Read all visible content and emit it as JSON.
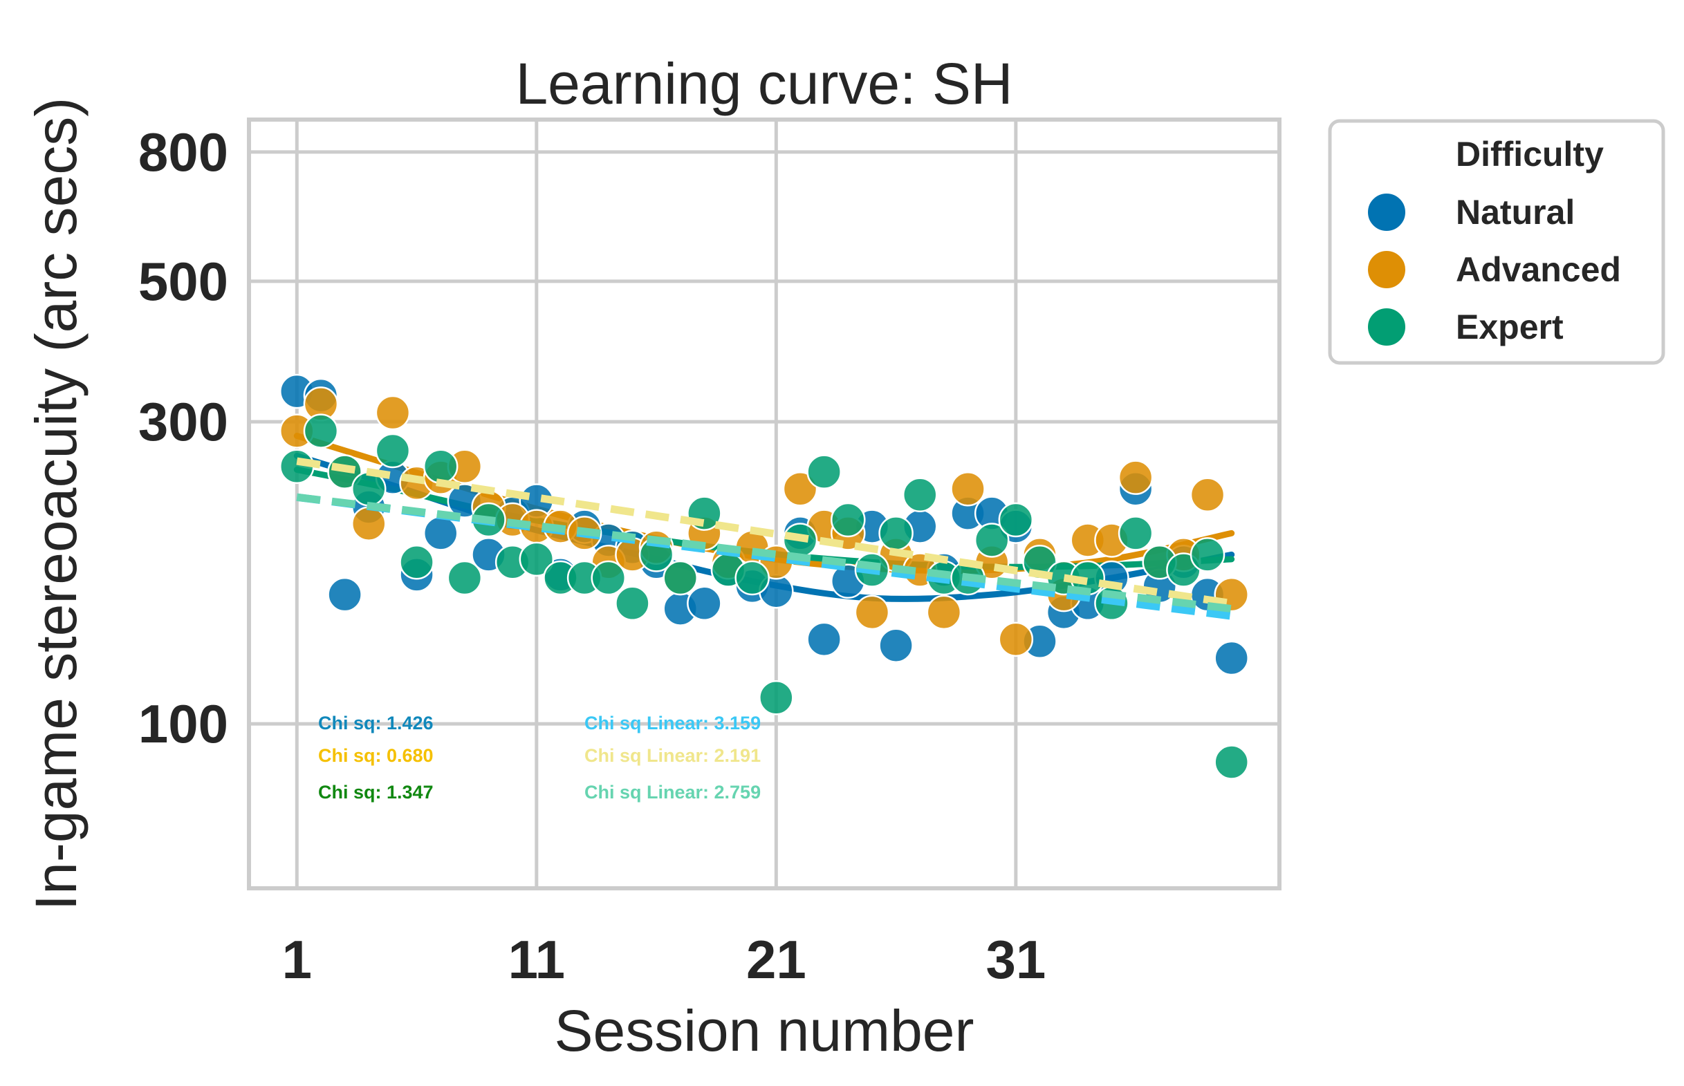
{
  "chart_data": {
    "type": "scatter",
    "title": "Learning curve: SH",
    "xlabel": "Session number",
    "ylabel": "In-game stereoacuity (arc secs)",
    "yscale": "log",
    "xlim": [
      -1,
      42
    ],
    "ylim": [
      55,
      900
    ],
    "x_ticks": [
      1,
      11,
      21,
      31
    ],
    "x_tick_labels": [
      "1",
      "11",
      "21",
      "31"
    ],
    "y_ticks": [
      100,
      300,
      500,
      800
    ],
    "y_tick_labels": [
      "100",
      "300",
      "500",
      "800"
    ],
    "grid": true,
    "legend": {
      "title": "Difficulty",
      "placement": "outside-right",
      "entries": [
        "Natural",
        "Advanced",
        "Expert"
      ]
    },
    "colors": {
      "Natural": "#0173b2",
      "Advanced": "#de8f05",
      "Expert": "#029e73",
      "Natural_linear": "#3bc8f5",
      "Advanced_linear": "#f0e68c",
      "Expert_linear": "#66d4b0",
      "annot_Natural": "#1188bb",
      "annot_Advanced": "#f5c000",
      "annot_Expert": "#118811"
    },
    "series": [
      {
        "name": "Natural",
        "points": [
          [
            1,
            335
          ],
          [
            2,
            330
          ],
          [
            3,
            160
          ],
          [
            4,
            220
          ],
          [
            5,
            245
          ],
          [
            6,
            172
          ],
          [
            7,
            200
          ],
          [
            8,
            225
          ],
          [
            9,
            185
          ],
          [
            10,
            215
          ],
          [
            11,
            225
          ],
          [
            12,
            172
          ],
          [
            13,
            205
          ],
          [
            14,
            195
          ],
          [
            15,
            190
          ],
          [
            16,
            180
          ],
          [
            17,
            152
          ],
          [
            18,
            155
          ],
          [
            19,
            175
          ],
          [
            20,
            165
          ],
          [
            21,
            162
          ],
          [
            22,
            200
          ],
          [
            23,
            136
          ],
          [
            24,
            168
          ],
          [
            25,
            205
          ],
          [
            26,
            133
          ],
          [
            27,
            205
          ],
          [
            28,
            175
          ],
          [
            29,
            215
          ],
          [
            30,
            215
          ],
          [
            31,
            205
          ],
          [
            32,
            135
          ],
          [
            33,
            150
          ],
          [
            34,
            155
          ],
          [
            35,
            170
          ],
          [
            36,
            235
          ],
          [
            37,
            165
          ],
          [
            38,
            180
          ],
          [
            39,
            160
          ],
          [
            40,
            127
          ]
        ]
      },
      {
        "name": "Advanced",
        "points": [
          [
            1,
            290
          ],
          [
            2,
            320
          ],
          [
            3,
            250
          ],
          [
            4,
            207
          ],
          [
            5,
            310
          ],
          [
            6,
            240
          ],
          [
            7,
            245
          ],
          [
            8,
            255
          ],
          [
            9,
            220
          ],
          [
            10,
            210
          ],
          [
            11,
            205
          ],
          [
            12,
            205
          ],
          [
            13,
            200
          ],
          [
            14,
            180
          ],
          [
            15,
            185
          ],
          [
            16,
            190
          ],
          [
            17,
            170
          ],
          [
            18,
            200
          ],
          [
            19,
            180
          ],
          [
            20,
            190
          ],
          [
            21,
            180
          ],
          [
            22,
            235
          ],
          [
            23,
            205
          ],
          [
            24,
            200
          ],
          [
            25,
            150
          ],
          [
            26,
            185
          ],
          [
            27,
            175
          ],
          [
            28,
            150
          ],
          [
            29,
            235
          ],
          [
            30,
            180
          ],
          [
            31,
            136
          ],
          [
            32,
            185
          ],
          [
            33,
            160
          ],
          [
            34,
            195
          ],
          [
            35,
            195
          ],
          [
            36,
            245
          ],
          [
            37,
            180
          ],
          [
            38,
            185
          ],
          [
            39,
            230
          ],
          [
            40,
            160
          ]
        ]
      },
      {
        "name": "Expert",
        "points": [
          [
            1,
            255
          ],
          [
            2,
            290
          ],
          [
            3,
            250
          ],
          [
            4,
            235
          ],
          [
            5,
            270
          ],
          [
            6,
            180
          ],
          [
            7,
            255
          ],
          [
            8,
            170
          ],
          [
            9,
            210
          ],
          [
            10,
            180
          ],
          [
            11,
            182
          ],
          [
            12,
            170
          ],
          [
            13,
            170
          ],
          [
            14,
            170
          ],
          [
            15,
            155
          ],
          [
            16,
            185
          ],
          [
            17,
            170
          ],
          [
            18,
            215
          ],
          [
            19,
            175
          ],
          [
            20,
            170
          ],
          [
            21,
            110
          ],
          [
            22,
            195
          ],
          [
            23,
            250
          ],
          [
            24,
            210
          ],
          [
            25,
            175
          ],
          [
            26,
            200
          ],
          [
            27,
            230
          ],
          [
            28,
            170
          ],
          [
            29,
            170
          ],
          [
            30,
            195
          ],
          [
            31,
            210
          ],
          [
            32,
            180
          ],
          [
            33,
            170
          ],
          [
            34,
            170
          ],
          [
            35,
            155
          ],
          [
            36,
            200
          ],
          [
            37,
            180
          ],
          [
            38,
            175
          ],
          [
            39,
            185
          ],
          [
            40,
            87
          ]
        ]
      }
    ],
    "fit_curves": [
      {
        "series": "Natural",
        "kind": "quadratic",
        "style": "solid",
        "x": [
          1,
          5,
          10,
          15,
          20,
          25,
          30,
          35,
          40
        ],
        "y": [
          265,
          238,
          207,
          186,
          168,
          158,
          160,
          170,
          185
        ]
      },
      {
        "series": "Advanced",
        "kind": "quadratic",
        "style": "solid",
        "x": [
          1,
          5,
          10,
          15,
          20,
          25,
          30,
          35,
          40
        ],
        "y": [
          285,
          256,
          224,
          200,
          184,
          176,
          175,
          182,
          200
        ]
      },
      {
        "series": "Expert",
        "kind": "quadratic",
        "style": "solid",
        "x": [
          1,
          5,
          10,
          15,
          20,
          25,
          30,
          35,
          40
        ],
        "y": [
          252,
          235,
          213,
          198,
          187,
          180,
          177,
          178,
          182
        ]
      },
      {
        "series": "Natural",
        "kind": "linear",
        "style": "dashed",
        "x": [
          1,
          40
        ],
        "y": [
          228,
          148
        ]
      },
      {
        "series": "Advanced",
        "kind": "linear",
        "style": "dashed",
        "x": [
          1,
          40
        ],
        "y": [
          260,
          155
        ]
      },
      {
        "series": "Expert",
        "kind": "linear",
        "style": "dashed",
        "x": [
          1,
          40
        ],
        "y": [
          228,
          152
        ]
      }
    ],
    "annotations": [
      {
        "text": "Chi sq: 1.426",
        "series": "Natural"
      },
      {
        "text": "Chi sq: 0.680",
        "series": "Advanced"
      },
      {
        "text": "Chi sq: 1.347",
        "series": "Expert"
      },
      {
        "text": "Chi sq Linear: 3.159",
        "series": "Natural_linear"
      },
      {
        "text": "Chi sq Linear: 2.191",
        "series": "Advanced_linear"
      },
      {
        "text": "Chi sq Linear: 2.759",
        "series": "Expert_linear"
      }
    ]
  }
}
